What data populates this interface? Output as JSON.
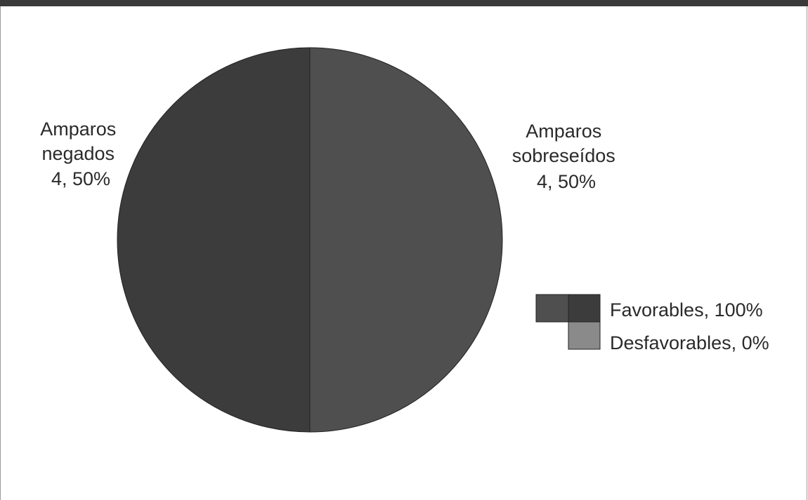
{
  "chart_data": {
    "type": "pie",
    "title": "",
    "slices": [
      {
        "label_lines": [
          "Amparos",
          "sobreseídos",
          "4, 50%"
        ],
        "value": 4,
        "percent": 50,
        "color": "#4f4f4f"
      },
      {
        "label_lines": [
          "Amparos",
          "negados",
          "4, 50%"
        ],
        "value": 4,
        "percent": 50,
        "color": "#3c3c3c"
      }
    ],
    "legend": {
      "position": "right",
      "items": [
        {
          "label": "Favorables, 100%",
          "colors": [
            "#4f4f4f",
            "#3c3c3c"
          ]
        },
        {
          "label": "Desfavorables, 0%",
          "colors": [
            "#8a8a8a"
          ]
        }
      ]
    }
  },
  "colors": {
    "top_bar": "#3a3a3a",
    "outline": "#222222",
    "text": "#2a2a2a"
  }
}
